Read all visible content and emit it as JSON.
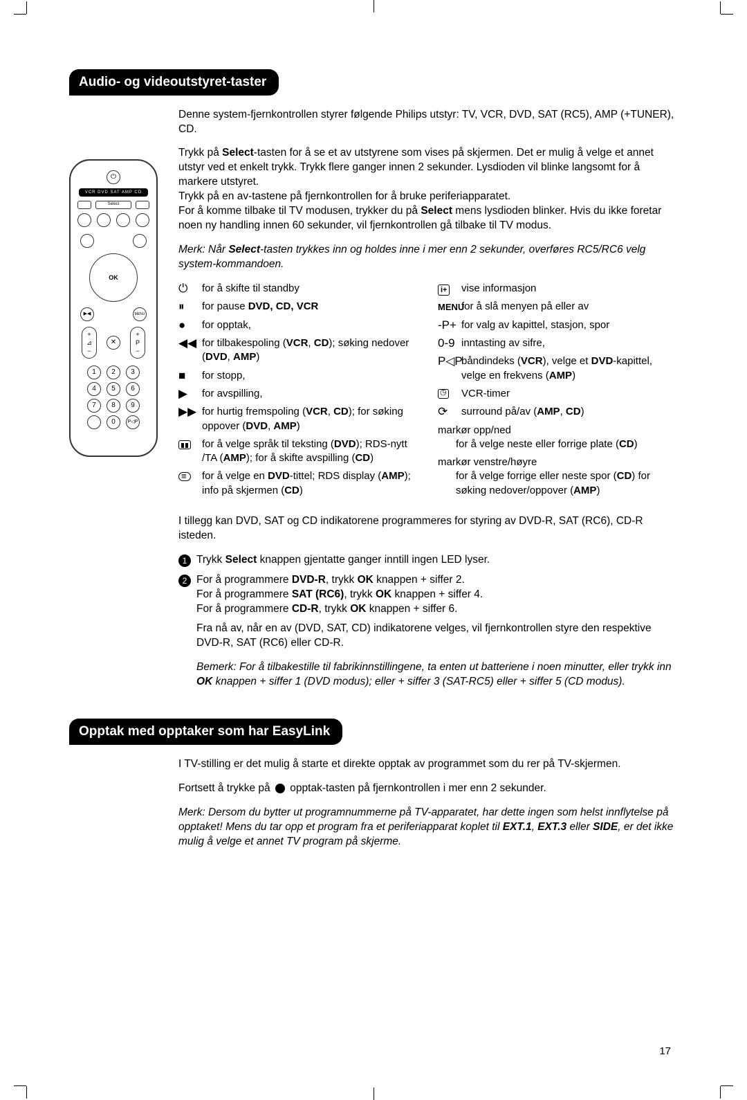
{
  "page_number": "17",
  "crop_marks": true,
  "section1": {
    "title": "Audio- og videoutstyret-taster",
    "intro": "Denne system-fjernkontrollen styrer følgende Philips utstyr: TV, VCR, DVD, SAT (RC5), AMP (+TUNER), CD.",
    "p2a": "Trykk på ",
    "p2_select": "Select",
    "p2b": "-tasten for å se et av utstyrene som vises på skjermen. Det er mulig å velge et annet utstyr ved et enkelt trykk. Trykk flere ganger innen 2 sekunder. Lysdioden vil blinke langsomt for å markere utstyret.",
    "p3": "Trykk på en av-tastene på fjernkontrollen for å bruke periferiapparatet.",
    "p4a": "For å komme tilbake til TV modusen, trykker du på ",
    "p4b": " mens lysdioden blinker. Hvis du ikke foretar noen ny handling innen 60 sekunder, vil fjernkontrollen gå tilbake til TV modus.",
    "note1a": "Merk: Når ",
    "note1b": "-tasten trykkes inn og holdes inne i mer enn 2 sekunder, overføres RC5/RC6 velg system-kommandoen.",
    "left": [
      {
        "icon": "⏻",
        "t": "for å skifte til standby"
      },
      {
        "icon": "⏸",
        "t": "for pause ",
        "b": "DVD, CD, VCR"
      },
      {
        "icon": "●",
        "t": "for opptak,"
      },
      {
        "icon": "◀◀",
        "t": "for tilbakespoling (",
        "b": "VCR",
        "t2": ", ",
        "b2": "CD",
        "t3": "); søking nedover (",
        "b3": "DVD",
        "t4": ", ",
        "b4": "AMP",
        "t5": ")"
      },
      {
        "icon": "■",
        "t": "for stopp,"
      },
      {
        "icon": "▶",
        "t": "for avspilling,"
      },
      {
        "icon": "▶▶",
        "t": "for hurtig fremspoling (",
        "b": "VCR",
        "t2": ", ",
        "b2": "CD",
        "t3": "); for søking oppover (",
        "b3": "DVD",
        "t4": ", ",
        "b4": "AMP",
        "t5": ")"
      },
      {
        "icon": "text",
        "t": "for å velge språk til teksting (",
        "b": "DVD",
        "t2": "); RDS-nytt /TA (",
        "b2": "AMP",
        "t3": "); for å skifte avspilling (",
        "b3": "CD",
        "t4": ")"
      },
      {
        "icon": "list",
        "t": "for å velge en ",
        "b": "DVD",
        "t2": "-tittel; RDS display (",
        "b2": "AMP",
        "t3": "); info på skjermen (",
        "b3": "CD",
        "t4": ")"
      }
    ],
    "right": [
      {
        "icon": "info",
        "t": "vise informasjon"
      },
      {
        "icon": "MENU",
        "t": "for å slå menyen på eller av"
      },
      {
        "icon": "-P+",
        "t": "for valg av kapittel, stasjon, spor"
      },
      {
        "icon": "0-9",
        "t": "inntasting av sifre,"
      },
      {
        "icon": "P◁P",
        "t": "båndindeks (",
        "b": "VCR",
        "t2": "), velge et ",
        "b2": "DVD",
        "t3": "-kapittel, velge en frekvens (",
        "b3": "AMP",
        "t4": ")"
      },
      {
        "icon": "timer",
        "t": "VCR-timer"
      },
      {
        "icon": "⟳",
        "t": "surround på/av (",
        "b": "AMP",
        "t2": ", ",
        "b2": "CD",
        "t3": ")"
      },
      {
        "plain": "markør opp/ned",
        "sub": "for å velge neste eller forrige plate (",
        "b": "CD",
        "t2": ")"
      },
      {
        "plain": "markør venstre/høyre",
        "sub": "for å velge forrige eller neste spor (",
        "b": "CD",
        "t2": ") for søking nedover/oppover (",
        "b2": "AMP",
        "t3": ")"
      }
    ],
    "tail1": "I tillegg kan DVD, SAT og CD indikatorene programmeres for styring av DVD-R, SAT (RC6), CD-R isteden.",
    "step1a": "Trykk ",
    "step1b": " knappen gjentatte ganger inntill ingen LED lyser.",
    "step2_l1a": "For å programmere ",
    "step2_l1b": "DVD-R",
    "step2_l1c": ", trykk ",
    "step2_l1d": "OK",
    "step2_l1e": " knappen + siffer 2.",
    "step2_l2a": "For å programmere ",
    "step2_l2b": "SAT (RC6)",
    "step2_l2c": ", trykk ",
    "step2_l2e": " knappen + siffer 4.",
    "step2_l3a": "For å programmere ",
    "step2_l3b": "CD-R",
    "step2_l3c": ", trykk ",
    "step2_l3e": " knappen  + siffer 6.",
    "tail2": "Fra nå av, når en av (DVD, SAT, CD) indikatorene velges, vil fjernkontrollen styre den respektive DVD-R, SAT (RC6) eller CD-R.",
    "note2a": "Bemerk: For å tilbakestille til fabrikinnstillingene, ta enten ut batteriene i noen minutter, eller trykk inn ",
    "note2b": " knappen  + siffer 1 (DVD modus); eller + siffer 3 (SAT-RC5) eller + siffer 5 (CD modus)."
  },
  "section2": {
    "title": "Opptak med opptaker som har EasyLink",
    "p1": "I TV-stilling er det mulig å starte et direkte opptak av programmet som du rer på TV-skjermen.",
    "p2a": "Fortsett å trykke på ",
    "p2b": " opptak-tasten på fjernkontrollen i mer enn 2 sekunder.",
    "note_a": "Merk: Dersom du bytter ut programnummerne på TV-apparatet, har dette ingen som helst innflytelse på opptaket! Mens du tar opp et program fra et periferiapparat koplet til ",
    "note_b": "EXT.1",
    "note_c": ", ",
    "note_d": "EXT.3",
    "note_e": " eller ",
    "note_f": "SIDE",
    "note_g": ", er det ikke mulig å velge et annet TV program på skjerme."
  },
  "remote": {
    "bar": "VCR DVD SAT AMP CD",
    "ok": "OK",
    "menu": "MENU",
    "nums": [
      "1",
      "2",
      "3",
      "4",
      "5",
      "6",
      "7",
      "8",
      "9",
      "0"
    ]
  }
}
